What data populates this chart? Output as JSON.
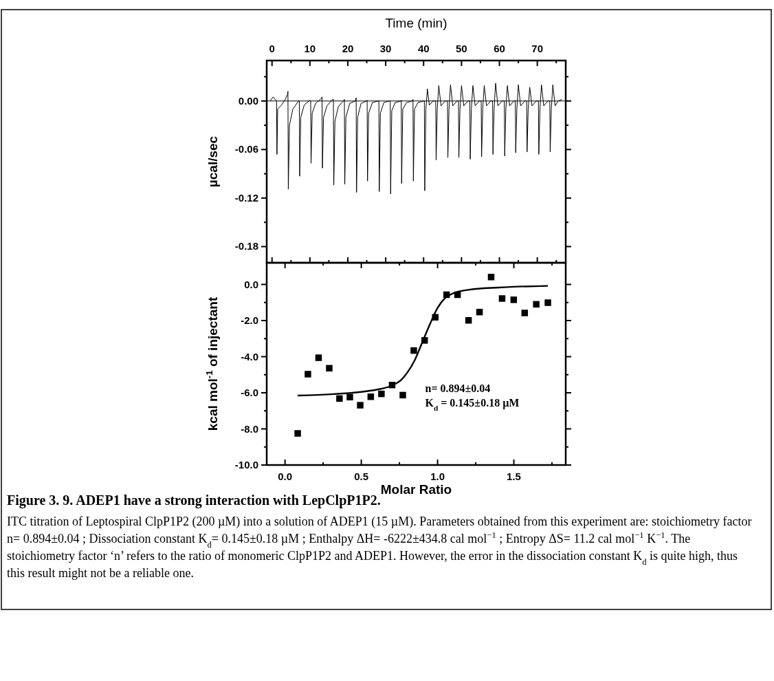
{
  "chart_data": [
    {
      "type": "line",
      "xlabel": "Time (min)",
      "ylabel": "µcal/sec",
      "xlim": [
        -1.4,
        77.5
      ],
      "xticks": [
        0,
        {
          "value": 5,
          "label": null
        },
        10,
        {
          "value": 15,
          "label": null
        },
        20,
        {
          "value": 25,
          "label": null
        },
        30,
        {
          "value": 35,
          "label": null
        },
        40,
        {
          "value": 45,
          "label": null
        },
        50,
        {
          "value": 55,
          "label": null
        },
        60,
        {
          "value": 65,
          "label": null
        },
        70,
        {
          "value": 75,
          "label": null
        }
      ],
      "ylim": [
        -0.2,
        0.05
      ],
      "yticks": [
        {
          "value": 0.03,
          "label": null
        },
        {
          "value": 0,
          "label": "0.00"
        },
        {
          "value": -0.03,
          "label": null
        },
        {
          "value": -0.06,
          "label": "-0.06"
        },
        {
          "value": -0.09,
          "label": null
        },
        {
          "value": -0.12,
          "label": "-0.12"
        },
        {
          "value": -0.15,
          "label": null
        },
        {
          "value": -0.18,
          "label": "-0.18"
        }
      ],
      "ref_lines": [
        {
          "axis": "y",
          "value": 0,
          "color": "#000000"
        }
      ],
      "series": [
        {
          "color": "#000000",
          "x": [
            -0.5,
            0.3,
            1.2,
            1.3,
            1.5,
            2.5,
            3.5,
            4.1,
            4.2,
            4.3,
            4.6,
            5.5,
            7.0,
            7.2,
            7.3,
            7.6,
            8.5,
            10.0,
            10.2,
            10.3,
            10.6,
            11.5,
            13.0,
            13.2,
            13.3,
            13.6,
            14.5,
            16.0,
            16.2,
            16.3,
            16.6,
            17.5,
            19.0,
            19.1,
            19.2,
            19.5,
            20.5,
            22.0,
            22.2,
            22.3,
            22.6,
            23.5,
            25.0,
            25.1,
            25.2,
            25.5,
            26.5,
            28.0,
            28.2,
            28.3,
            28.6,
            29.5,
            31.0,
            31.2,
            31.3,
            31.6,
            32.5,
            34.0,
            34.1,
            34.2,
            34.5,
            35.5,
            37.0,
            37.2,
            37.3,
            37.6,
            38.5,
            40.0,
            40.2,
            40.3,
            40.6,
            41.0,
            41.5,
            42.5,
            43.2,
            43.3,
            43.6,
            44.0,
            44.6,
            45.7,
            46.3,
            46.4,
            46.7,
            47.1,
            47.7,
            48.8,
            49.2,
            49.3,
            49.6,
            50.0,
            50.6,
            51.7,
            52.2,
            52.3,
            52.6,
            53.0,
            53.6,
            54.7,
            55.2,
            55.3,
            55.6,
            56.0,
            56.6,
            57.7,
            58.2,
            58.3,
            58.6,
            59.0,
            59.6,
            60.7,
            61.3,
            61.4,
            61.7,
            62.1,
            62.7,
            63.8,
            64.2,
            64.3,
            64.6,
            65.0,
            65.6,
            66.7,
            67.2,
            67.3,
            67.6,
            68.0,
            68.6,
            69.7,
            70.3,
            70.4,
            70.7,
            71.1,
            71.7,
            72.8,
            73.3,
            73.4,
            73.7,
            74.1,
            74.7,
            75.5,
            76.5
          ],
          "values": [
            0.0,
            0.005,
            0.0,
            -0.066,
            -0.01,
            -0.005,
            0.002,
            0.008,
            0.012,
            -0.109,
            -0.03,
            -0.01,
            0.0,
            0.0,
            -0.093,
            -0.02,
            -0.005,
            0.001,
            0.0,
            -0.077,
            -0.015,
            -0.003,
            0.003,
            0.005,
            -0.083,
            -0.02,
            -0.006,
            0.002,
            0.002,
            -0.104,
            -0.025,
            -0.007,
            0.001,
            0.002,
            -0.103,
            -0.02,
            -0.003,
            0.0,
            0.004,
            -0.113,
            -0.02,
            -0.003,
            0.0,
            0.001,
            -0.099,
            -0.015,
            -0.002,
            0.0,
            0.0,
            -0.112,
            -0.015,
            -0.002,
            0.0,
            0.0,
            -0.115,
            -0.012,
            -0.002,
            0.0,
            0.001,
            -0.102,
            -0.01,
            -0.002,
            0.0,
            0.002,
            -0.099,
            -0.01,
            -0.002,
            0.0,
            0.0,
            -0.111,
            -0.01,
            0.015,
            -0.005,
            0.0,
            0.0,
            -0.073,
            -0.01,
            0.019,
            -0.006,
            0.0,
            0.0,
            -0.07,
            -0.01,
            0.02,
            -0.006,
            0.0,
            0.0,
            -0.07,
            -0.01,
            0.019,
            -0.006,
            0.0,
            0.0,
            -0.072,
            -0.01,
            0.019,
            -0.006,
            0.0,
            0.0,
            -0.069,
            -0.01,
            0.019,
            -0.006,
            0.0,
            0.0,
            -0.066,
            -0.01,
            0.022,
            -0.006,
            0.0,
            0.0,
            -0.068,
            -0.01,
            0.019,
            -0.006,
            0.0,
            0.0,
            -0.064,
            -0.01,
            0.02,
            -0.006,
            0.0,
            0.0,
            -0.063,
            -0.01,
            0.017,
            -0.006,
            0.0,
            0.0,
            -0.066,
            -0.01,
            0.02,
            -0.006,
            0.0,
            0.0,
            -0.063,
            -0.01,
            0.02,
            -0.006,
            0.0,
            0.002
          ]
        }
      ]
    },
    {
      "type": "scatter",
      "title": "Figure 3. 9. ADEP1 have a strong interaction with LepClpP1P2.",
      "subtitle": "ITC titration of Leptospiral ClpP1P2 (200 µM) into a solution of ADEP1 (15 µM). Parameters obtained from this experiment are: stoichiometry factor n= 0.894±0.04 ; Dissociation constant K$_{d}$= 0.145±0.18 µM ; Enthalpy ΔH= -6222±434.8 cal mol$^{−1}$ ; Entropy ΔS= 11.2 cal mol$^{−1}$ K$^{−1}$. The stoichiometry factor ‘n’ refers to the ratio of monomeric ClpP1P2 and ADEP1. However, the error in the dissociation constant K$_{d}$ is quite high, thus this result might not be a reliable one.",
      "xlabel": "Molar Ratio",
      "ylabel": "kcal mol$^{-1}$ of injectant",
      "xlim": [
        -0.12,
        1.84
      ],
      "xticks": [
        {
          "value": 0,
          "label": "0.0"
        },
        {
          "value": 0.25,
          "label": null
        },
        {
          "value": 0.5,
          "label": "0.5"
        },
        {
          "value": 0.75,
          "label": null
        },
        {
          "value": 1,
          "label": "1.0"
        },
        {
          "value": 1.25,
          "label": null
        },
        {
          "value": 1.5,
          "label": "1.5"
        },
        {
          "value": 1.75,
          "label": null
        }
      ],
      "ylim": [
        -10,
        1.2
      ],
      "yticks": [
        {
          "value": 0,
          "label": "0.0"
        },
        {
          "value": -1,
          "label": null
        },
        {
          "value": -2,
          "label": "-2.0"
        },
        {
          "value": -3,
          "label": null
        },
        {
          "value": -4,
          "label": "-4.0"
        },
        {
          "value": -5,
          "label": null
        },
        {
          "value": -6,
          "label": "-6.0"
        },
        {
          "value": -7,
          "label": null
        },
        {
          "value": -8,
          "label": "-8.0"
        },
        {
          "value": -9,
          "label": null
        },
        {
          "value": -10,
          "label": "-10.0"
        }
      ],
      "annotations": [
        "n= 0.894±0.04",
        "K$_{d}$ = 0.145±0.18 µM"
      ],
      "series": [
        {
          "marker": "square",
          "color": "#000000",
          "x": [
            0.083,
            0.15,
            0.22,
            0.29,
            0.357,
            0.425,
            0.493,
            0.562,
            0.632,
            0.702,
            0.772,
            0.844,
            0.915,
            0.985,
            1.059,
            1.131,
            1.203,
            1.275,
            1.351,
            1.423,
            1.499,
            1.571,
            1.647,
            1.723
          ],
          "values": [
            -8.25,
            -4.97,
            -4.06,
            -4.64,
            -6.32,
            -6.24,
            -6.69,
            -6.22,
            -6.06,
            -5.57,
            -6.13,
            -3.66,
            -3.1,
            -1.82,
            -0.57,
            -0.57,
            -1.99,
            -1.53,
            0.41,
            -0.78,
            -0.85,
            -1.58,
            -1.1,
            -1.01
          ]
        },
        {
          "type": "line",
          "color": "#000000",
          "x": [
            0.083,
            0.3,
            0.5,
            0.6,
            0.7,
            0.76,
            0.8,
            0.85,
            0.9,
            0.95,
            1.0,
            1.05,
            1.1,
            1.2,
            1.4,
            1.723
          ],
          "values": [
            -6.15,
            -6.08,
            -5.95,
            -5.83,
            -5.6,
            -5.3,
            -4.9,
            -4.2,
            -3.2,
            -2.2,
            -1.3,
            -0.75,
            -0.5,
            -0.3,
            -0.17,
            -0.08
          ]
        }
      ]
    }
  ]
}
